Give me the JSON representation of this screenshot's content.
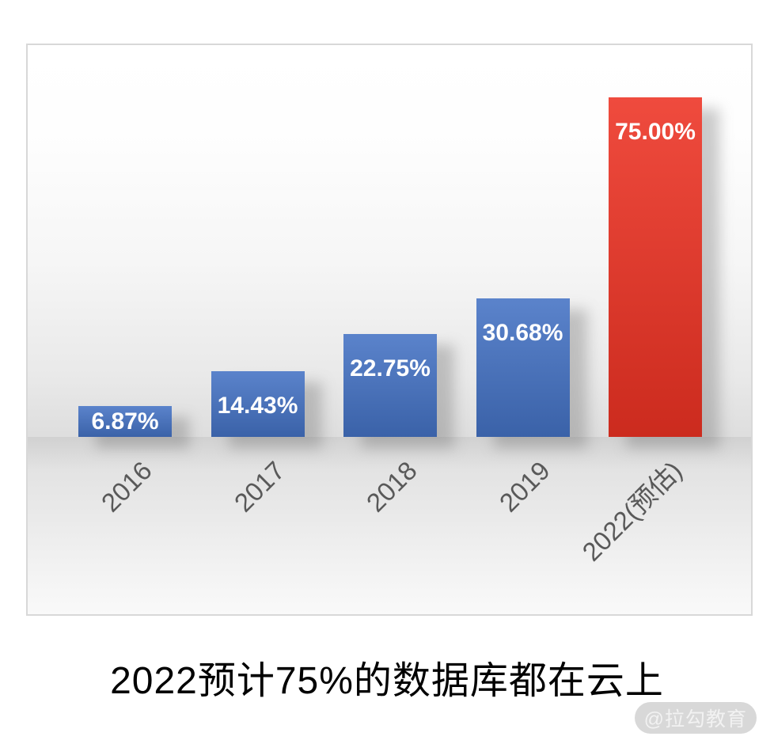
{
  "chart_data": {
    "type": "bar",
    "title": "2022预计75%的数据库都在云上",
    "categories": [
      "2016",
      "2017",
      "2018",
      "2019",
      "2022(预估)"
    ],
    "values": [
      6.87,
      14.43,
      22.75,
      30.68,
      75.0
    ],
    "value_labels": [
      "6.87%",
      "14.43%",
      "22.75%",
      "30.68%",
      "75.00%"
    ],
    "bar_colors": [
      "#4472c4",
      "#4472c4",
      "#4472c4",
      "#4472c4",
      "#ed3223"
    ],
    "highlight_index": 4,
    "xlabel": "",
    "ylabel": "",
    "ylim": [
      0,
      78
    ],
    "grid": false,
    "legend": false,
    "value_label_color": "#ffffff",
    "tick_label_color": "#595959",
    "tick_label_rotation_deg": -45
  },
  "watermark": {
    "text": "@拉勾教育",
    "pill_color": "#d8d8d8",
    "text_color": "#f2f2f2"
  }
}
